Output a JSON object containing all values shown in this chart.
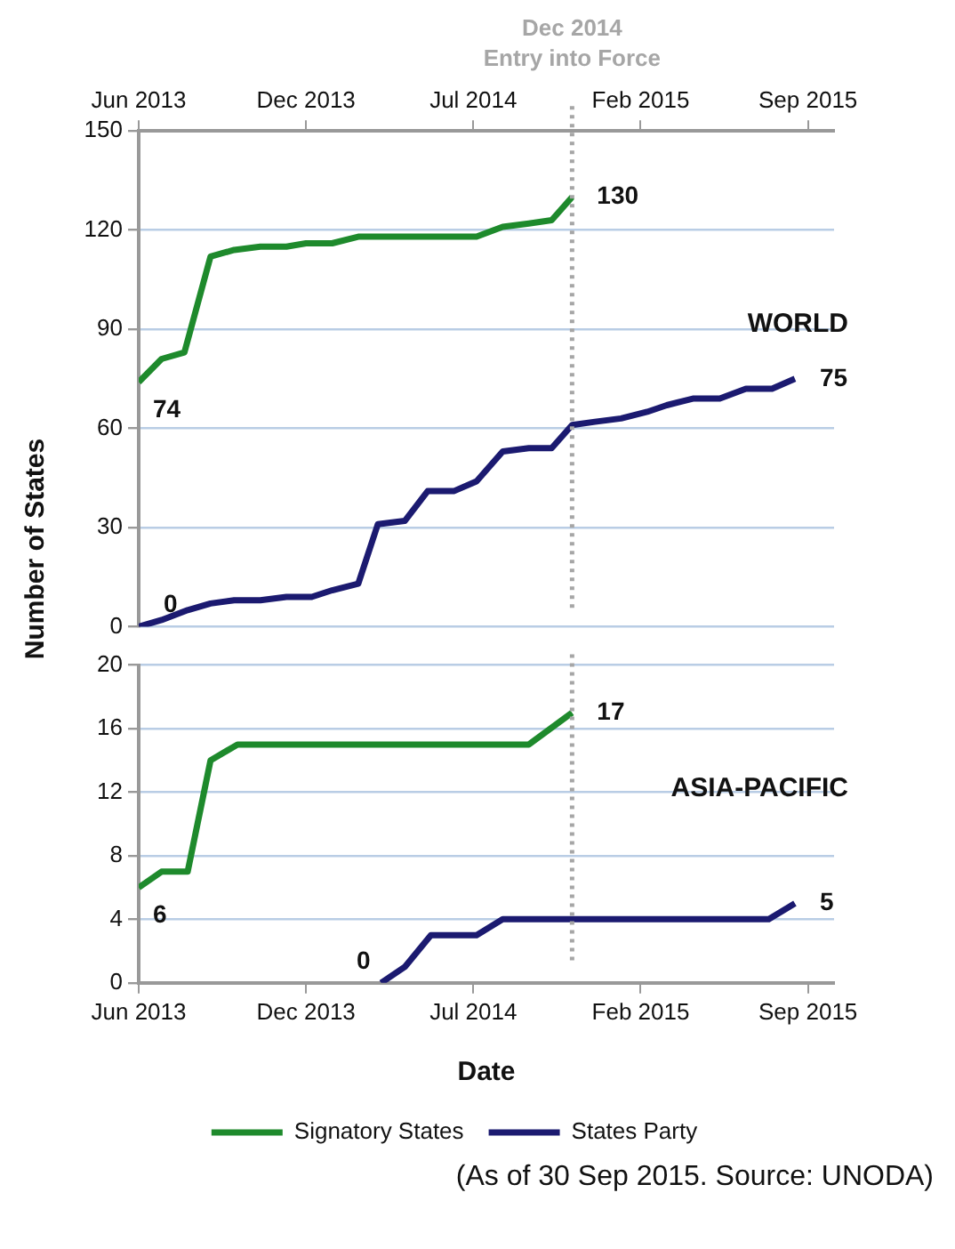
{
  "chart_data": [
    {
      "type": "line",
      "ylabel": "Number of States",
      "xlim": [
        "2013-06-03",
        "2015-10-03"
      ],
      "ylim": [
        0,
        150
      ],
      "yticks": [
        0,
        30,
        60,
        90,
        120,
        150
      ],
      "xticks": [
        {
          "value": "2013-06-03",
          "label": "Jun 2013"
        },
        {
          "value": "2013-12-25",
          "label": "Dec 2013"
        },
        {
          "value": "2014-07-18",
          "label": "Jul 2014"
        },
        {
          "value": "2015-02-08",
          "label": "Feb 2015"
        },
        {
          "value": "2015-09-01",
          "label": "Sep 2015"
        }
      ],
      "grid": "y",
      "legend": false,
      "series": [
        {
          "color": "#1e8a2c",
          "x": [
            "2013-06-03",
            "2013-07-01",
            "2013-07-29",
            "2013-08-30",
            "2013-09-28",
            "2013-10-30",
            "2013-12-01",
            "2013-12-25",
            "2014-01-26",
            "2014-02-27",
            "2014-07-22",
            "2014-08-23",
            "2014-09-24",
            "2014-10-22",
            "2014-11-16"
          ],
          "values": [
            74,
            81,
            83,
            112,
            114,
            115,
            115,
            116,
            116,
            118,
            118,
            121,
            122,
            123,
            130
          ]
        },
        {
          "color": "#1b1a70",
          "x": [
            "2013-06-03",
            "2013-07-01",
            "2013-08-02",
            "2013-08-30",
            "2013-09-28",
            "2013-10-30",
            "2013-12-01",
            "2014-01-01",
            "2014-01-26",
            "2014-02-27",
            "2014-03-23",
            "2014-04-25",
            "2014-05-23",
            "2014-06-24",
            "2014-07-22",
            "2014-08-23",
            "2014-09-24",
            "2014-10-22",
            "2014-11-16",
            "2014-12-14",
            "2015-01-15",
            "2015-02-16",
            "2015-03-12",
            "2015-04-13",
            "2015-05-16",
            "2015-06-17",
            "2015-07-19",
            "2015-08-16"
          ],
          "values": [
            0,
            2,
            5,
            7,
            8,
            8,
            9,
            9,
            11,
            13,
            31,
            32,
            41,
            41,
            44,
            53,
            54,
            54,
            61,
            62,
            63,
            65,
            67,
            69,
            69,
            72,
            72,
            75
          ]
        }
      ],
      "ref_lines": [
        {
          "axis": "x",
          "value": "2014-11-16",
          "label": "Dec 2014\nEntry into Force",
          "color": "#a6a6a6",
          "line_style": "dotted"
        }
      ],
      "annotations": [
        "WORLD",
        {
          "text": "74",
          "x": "2013-06-03",
          "y": 74
        },
        {
          "text": "0",
          "x": "2013-06-03",
          "y": 0
        },
        {
          "text": "130",
          "x": "2014-11-16",
          "y": 130
        },
        {
          "text": "75",
          "x": "2015-08-16",
          "y": 75
        }
      ]
    },
    {
      "type": "line",
      "xlabel": "Date",
      "xlim": [
        "2013-06-03",
        "2015-10-03"
      ],
      "ylim": [
        0,
        20
      ],
      "yticks": [
        0,
        4,
        8,
        12,
        16,
        20
      ],
      "xticks": [
        {
          "value": "2013-06-03",
          "label": "Jun 2013"
        },
        {
          "value": "2013-12-25",
          "label": "Dec 2013"
        },
        {
          "value": "2014-07-18",
          "label": "Jul 2014"
        },
        {
          "value": "2015-02-08",
          "label": "Feb 2015"
        },
        {
          "value": "2015-09-01",
          "label": "Sep 2015"
        }
      ],
      "grid": "y",
      "legend": "bottom",
      "series": [
        {
          "name": "Signatory States",
          "color": "#1e8a2c",
          "x": [
            "2013-06-03",
            "2013-07-01",
            "2013-08-02",
            "2013-08-30",
            "2013-10-02",
            "2014-09-24",
            "2014-11-16"
          ],
          "values": [
            6,
            7,
            7,
            14,
            15,
            15,
            17
          ]
        },
        {
          "name": "States Party",
          "color": "#1b1a70",
          "x": [
            "2014-03-27",
            "2014-04-25",
            "2014-05-27",
            "2014-07-22",
            "2014-08-23",
            "2015-07-15",
            "2015-08-16"
          ],
          "values": [
            0,
            1,
            3,
            3,
            4,
            4,
            5
          ]
        }
      ],
      "ref_lines": [
        {
          "axis": "x",
          "value": "2014-11-16",
          "color": "#a6a6a6",
          "line_style": "dotted"
        }
      ],
      "annotations": [
        "ASIA-PACIFIC",
        {
          "text": "6",
          "x": "2013-06-03",
          "y": 6
        },
        {
          "text": "0",
          "x": "2014-03-27",
          "y": 0
        },
        {
          "text": "17",
          "x": "2014-11-16",
          "y": 17
        },
        {
          "text": "5",
          "x": "2015-08-16",
          "y": 5
        },
        "(As of 30 Sep 2015. Source: UNODA)"
      ]
    }
  ]
}
